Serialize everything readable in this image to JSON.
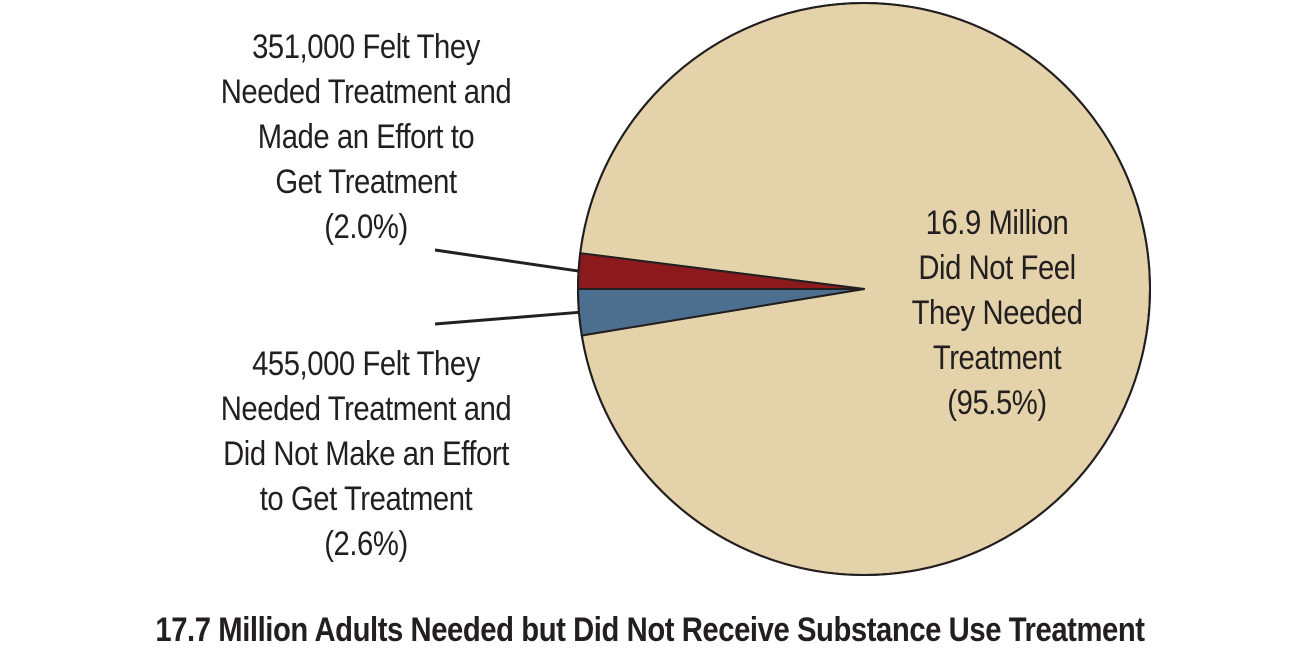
{
  "chart_data": {
    "type": "pie",
    "title": "17.7 Million Adults Needed but Did Not Receive Substance Use Treatment",
    "slices": [
      {
        "id": "nofeel",
        "label_lines": [
          "16.9 Million",
          "Did Not Feel",
          "They Needed",
          "Treatment",
          "(95.5%)"
        ],
        "count": "16.9 Million",
        "percent": 95.5,
        "color": "#e4d3aa"
      },
      {
        "id": "effort",
        "label_lines": [
          "351,000 Felt They",
          "Needed Treatment and",
          "Made an Effort to",
          "Get Treatment",
          "(2.0%)"
        ],
        "count": "351,000",
        "percent": 2.0,
        "color": "#8c1a1d"
      },
      {
        "id": "noeffort",
        "label_lines": [
          "455,000 Felt They",
          "Needed Treatment and",
          "Did Not Make an Effort",
          "to Get Treatment",
          "(2.6%)"
        ],
        "count": "455,000",
        "percent": 2.6,
        "color": "#4d6f8f"
      }
    ],
    "legend": "none",
    "grid": false
  }
}
